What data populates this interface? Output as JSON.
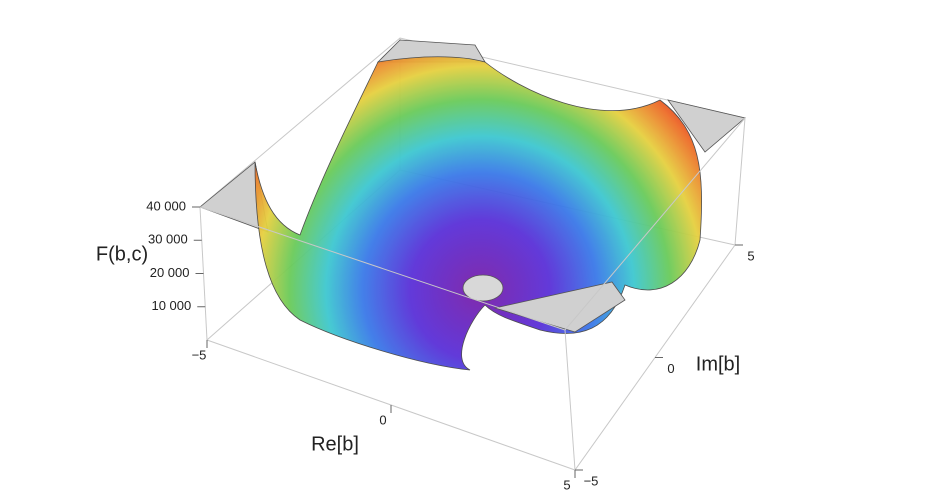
{
  "chart_data": {
    "type": "surface3d",
    "xlabel": "Re[b]",
    "ylabel": "Im[b]",
    "zlabel": "F(b,c)",
    "xlim": [
      -5,
      5
    ],
    "xticks": [
      {
        "value": -5,
        "label": "−5"
      },
      0,
      5
    ],
    "ylim": [
      -5,
      5
    ],
    "yticks": [
      {
        "value": -5,
        "label": "−5"
      },
      0,
      5
    ],
    "zlim": [
      0,
      40000
    ],
    "zticks": [
      {
        "value": 10000,
        "label": "10 000"
      },
      {
        "value": 20000,
        "label": "20 000"
      },
      {
        "value": 30000,
        "label": "30 000"
      },
      {
        "value": 40000,
        "label": "40 000"
      }
    ]
  }
}
